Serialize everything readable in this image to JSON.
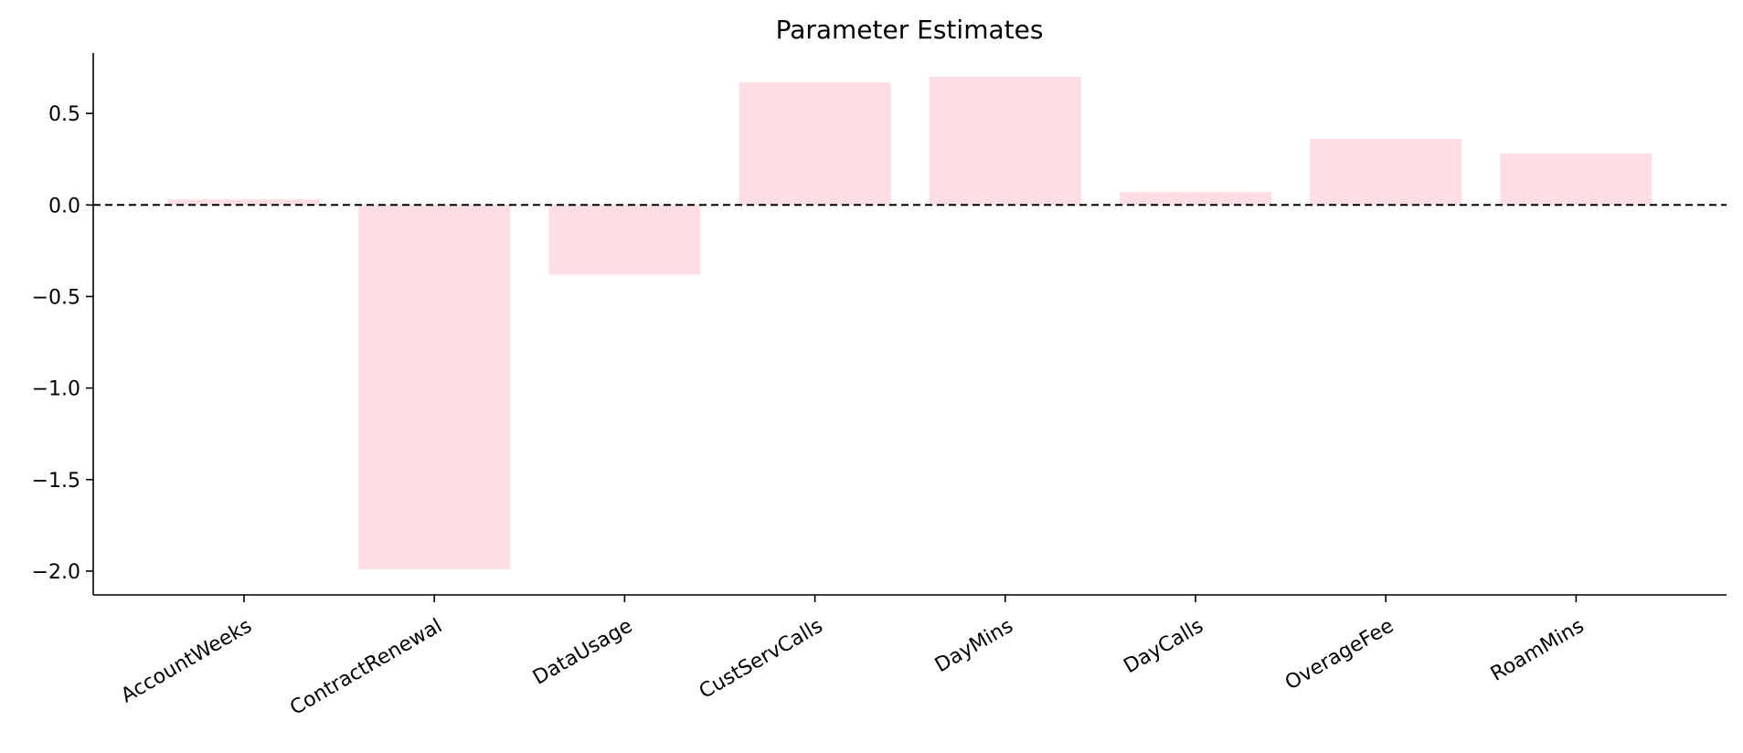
{
  "chart_data": {
    "type": "bar",
    "title": "Parameter Estimates",
    "xlabel": "",
    "ylabel": "",
    "categories": [
      "AccountWeeks",
      "ContractRenewal",
      "DataUsage",
      "CustServCalls",
      "DayMins",
      "DayCalls",
      "OverageFee",
      "RoamMins"
    ],
    "values": [
      0.03,
      -1.99,
      -0.38,
      0.67,
      0.7,
      0.07,
      0.36,
      0.28
    ],
    "ylim": [
      -2.13,
      0.83
    ],
    "yticks": [
      0.5,
      0.0,
      -0.5,
      -1.0,
      -1.5,
      -2.0
    ],
    "ytick_labels": [
      "0.5",
      "0.0",
      "−0.5",
      "−1.0",
      "−1.5",
      "−2.0"
    ],
    "reference_line": 0,
    "bar_color": "#ffdde5",
    "grid": false
  }
}
